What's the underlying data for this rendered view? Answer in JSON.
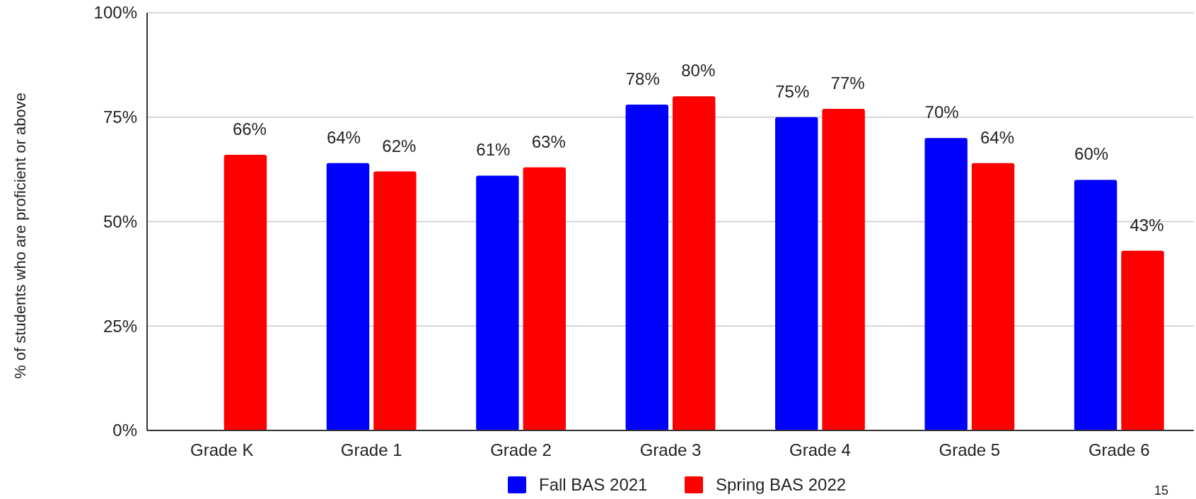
{
  "chart_data": {
    "type": "bar",
    "ylabel": "% of students who are proficient or above",
    "categories": [
      "Grade K",
      "Grade 1",
      "Grade 2",
      "Grade 3",
      "Grade 4",
      "Grade 5",
      "Grade 6"
    ],
    "series": [
      {
        "name": "Fall BAS 2021",
        "color": "#0000ff",
        "values": [
          null,
          64,
          61,
          78,
          75,
          70,
          60
        ],
        "value_labels": [
          null,
          "64%",
          "61%",
          "78%",
          "75%",
          "70%",
          "60%"
        ]
      },
      {
        "name": "Spring BAS 2022",
        "color": "#ff0000",
        "values": [
          66,
          62,
          63,
          80,
          77,
          64,
          43
        ],
        "value_labels": [
          "66%",
          "62%",
          "63%",
          "80%",
          "77%",
          "64%",
          "43%"
        ]
      }
    ],
    "ylim": [
      0,
      100
    ],
    "yticks": [
      {
        "value": 0,
        "label": "0%"
      },
      {
        "value": 25,
        "label": "25%"
      },
      {
        "value": 50,
        "label": "50%"
      },
      {
        "value": 75,
        "label": "75%"
      },
      {
        "value": 100,
        "label": "100%"
      }
    ],
    "grid": "y",
    "legend": "bottom",
    "annotations": [
      "15"
    ]
  }
}
